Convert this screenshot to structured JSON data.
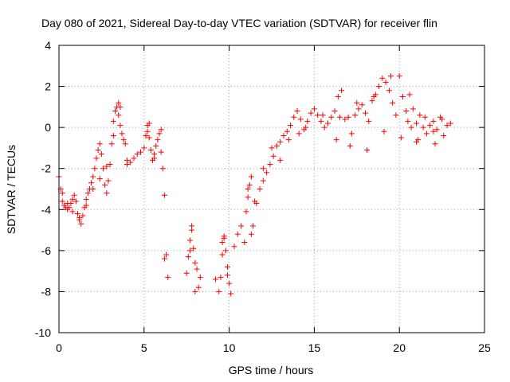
{
  "chart_data": {
    "type": "scatter",
    "title": "Day 080 of 2021, Sidereal Day-to-day VTEC variation (SDTVAR) for receiver flin",
    "xlabel": "GPS time / hours",
    "ylabel": "SDTVAR / TECUs",
    "xlim": [
      0,
      25
    ],
    "ylim": [
      -10,
      4
    ],
    "xticks": [
      "0",
      "5",
      "10",
      "15",
      "20",
      "25"
    ],
    "yticks": [
      "-10",
      "-8",
      "-6",
      "-4",
      "-2",
      "0",
      "2",
      "4"
    ],
    "grid": true,
    "marker": "plus",
    "color": "#ff0000",
    "series": [
      {
        "name": "SDTVAR",
        "x": [
          0.0,
          0.1,
          0.2,
          0.3,
          0.4,
          0.5,
          0.6,
          0.7,
          0.8,
          0.9,
          1.0,
          1.1,
          1.2,
          1.3,
          1.4,
          1.5,
          1.6,
          1.7,
          1.8,
          1.9,
          2.0,
          2.1,
          2.2,
          2.3,
          2.4,
          2.5,
          2.6,
          2.7,
          2.8,
          2.9,
          3.0,
          3.1,
          3.2,
          3.3,
          3.4,
          3.5,
          3.6,
          3.7,
          3.8,
          3.9,
          4.0,
          4.2,
          4.4,
          4.6,
          4.8,
          5.0,
          5.1,
          5.2,
          5.3,
          5.4,
          5.5,
          5.6,
          5.7,
          5.8,
          5.9,
          6.0,
          6.1,
          6.2,
          6.3,
          6.4,
          7.5,
          7.6,
          7.7,
          7.8,
          7.9,
          8.0,
          8.1,
          8.2,
          8.3,
          9.2,
          9.4,
          9.5,
          9.6,
          9.7,
          9.8,
          9.9,
          10.0,
          10.1,
          10.3,
          10.5,
          10.7,
          10.9,
          11.0,
          11.1,
          11.2,
          11.3,
          11.4,
          11.6,
          11.8,
          12.0,
          12.2,
          12.4,
          12.6,
          12.8,
          13.0,
          13.2,
          13.4,
          13.6,
          13.8,
          14.0,
          14.2,
          14.4,
          14.6,
          14.8,
          15.0,
          15.2,
          15.4,
          15.6,
          15.8,
          16.0,
          16.2,
          16.4,
          16.6,
          16.8,
          17.0,
          17.2,
          17.4,
          17.6,
          17.8,
          18.0,
          18.2,
          18.4,
          18.6,
          18.8,
          19.0,
          19.2,
          19.4,
          19.6,
          19.8,
          20.0,
          20.2,
          20.4,
          20.6,
          20.8,
          21.0,
          21.2,
          21.4,
          21.6,
          21.8,
          22.0,
          22.2,
          22.4,
          22.6,
          22.8,
          23.0,
          0.2,
          0.5,
          0.8,
          1.2,
          1.6,
          2.0,
          2.4,
          2.8,
          3.2,
          3.6,
          4.0,
          5.2,
          5.6,
          6.0,
          7.7,
          8.0,
          9.6,
          9.9,
          11.1,
          11.5,
          12.0,
          12.5,
          13.0,
          13.5,
          14.5,
          15.5,
          16.5,
          17.5,
          18.5,
          19.5,
          20.5,
          21.0,
          21.5,
          22.0,
          22.5,
          16.3,
          17.1,
          18.1,
          19.1,
          20.1,
          21.1,
          22.1,
          3.5,
          5.3,
          6.2,
          7.8,
          9.7,
          11.3,
          14.1,
          20.7
        ],
        "y": [
          -2.4,
          -3.0,
          -3.6,
          -3.8,
          -3.9,
          -4.0,
          -3.9,
          -3.7,
          -3.5,
          -3.3,
          -3.6,
          -4.2,
          -4.5,
          -4.7,
          -4.3,
          -3.9,
          -3.5,
          -3.2,
          -3.0,
          -2.7,
          -2.4,
          -2.0,
          -1.5,
          -1.1,
          -0.8,
          -1.3,
          -2.0,
          -2.8,
          -3.2,
          -2.6,
          -1.8,
          -0.8,
          0.3,
          0.8,
          1.0,
          0.6,
          0.1,
          -0.3,
          -0.6,
          -0.8,
          -1.8,
          -1.7,
          -1.5,
          -1.3,
          -1.2,
          -1.0,
          -0.4,
          -0.2,
          -0.5,
          -1.1,
          -1.6,
          -1.3,
          -0.9,
          -0.6,
          -0.3,
          -0.1,
          -2.0,
          -3.3,
          -6.2,
          -7.3,
          -7.1,
          -6.3,
          -5.5,
          -4.8,
          -5.9,
          -6.6,
          -6.9,
          -7.8,
          -7.3,
          -7.4,
          -8.0,
          -7.3,
          -6.2,
          -5.4,
          -6.0,
          -6.8,
          -7.6,
          -8.1,
          -5.8,
          -5.2,
          -4.8,
          -5.6,
          -4.1,
          -3.4,
          -2.8,
          -2.4,
          -4.8,
          -3.7,
          -3.0,
          -2.6,
          -2.2,
          -1.8,
          -1.4,
          -0.9,
          -0.7,
          -0.4,
          -0.2,
          0.1,
          0.5,
          0.8,
          0.4,
          -0.1,
          0.3,
          0.7,
          0.9,
          0.6,
          0.3,
          0.0,
          0.2,
          0.5,
          0.8,
          1.5,
          1.8,
          0.4,
          0.5,
          -0.3,
          0.6,
          0.9,
          1.1,
          0.7,
          0.3,
          1.3,
          1.6,
          2.0,
          2.4,
          2.2,
          1.8,
          1.2,
          0.6,
          2.5,
          1.5,
          0.8,
          1.6,
          0.9,
          0.2,
          0.6,
          0.0,
          -0.3,
          0.1,
          0.3,
          -0.1,
          0.5,
          -0.4,
          0.1,
          0.2,
          -3.2,
          -3.7,
          -4.1,
          -4.4,
          -3.8,
          -3.0,
          -2.5,
          -1.9,
          -0.4,
          1.0,
          -1.6,
          0.1,
          -1.5,
          -1.2,
          -6.0,
          -8.0,
          -5.6,
          -7.2,
          -3.0,
          -3.6,
          -2.0,
          -1.0,
          -1.6,
          -0.6,
          0.0,
          0.6,
          0.5,
          1.2,
          1.5,
          2.5,
          0.3,
          -0.7,
          0.5,
          -0.2,
          0.4,
          -0.6,
          -0.9,
          -1.1,
          -0.2,
          -0.5,
          -0.6,
          -0.8,
          1.2,
          0.2,
          -6.4,
          -5.0,
          -5.3,
          -5.2,
          -0.3,
          0.0
        ]
      }
    ]
  }
}
